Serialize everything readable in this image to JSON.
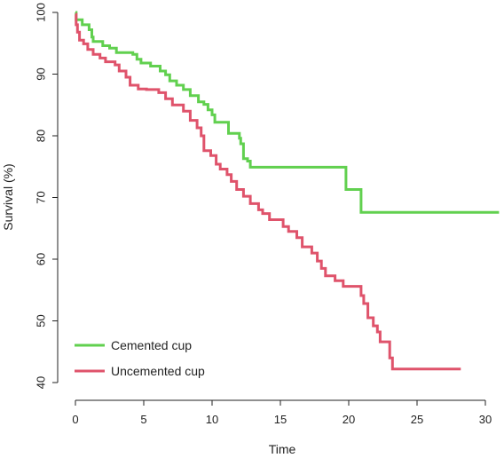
{
  "chart_data": {
    "type": "line",
    "title": "",
    "xlabel": "Time",
    "ylabel": "Survival (%)",
    "xlim": [
      0,
      31
    ],
    "ylim": [
      40,
      100
    ],
    "x_ticks": [
      0,
      5,
      10,
      15,
      20,
      25,
      30
    ],
    "y_ticks": [
      40,
      50,
      60,
      70,
      80,
      90,
      100
    ],
    "grid": false,
    "legend_position": "bottom-left",
    "step": true,
    "series": [
      {
        "name": "Cemented cup",
        "color": "#61d04f",
        "points": [
          [
            0,
            100
          ],
          [
            0.05,
            98.8
          ],
          [
            0.5,
            98.0
          ],
          [
            1.0,
            97.2
          ],
          [
            1.2,
            96.0
          ],
          [
            1.3,
            95.3
          ],
          [
            2.0,
            94.6
          ],
          [
            2.5,
            94.2
          ],
          [
            3.0,
            93.5
          ],
          [
            4.2,
            93.2
          ],
          [
            4.5,
            92.4
          ],
          [
            4.8,
            91.8
          ],
          [
            5.5,
            91.3
          ],
          [
            6.2,
            90.5
          ],
          [
            6.6,
            89.9
          ],
          [
            6.9,
            88.9
          ],
          [
            7.4,
            88.2
          ],
          [
            7.9,
            87.5
          ],
          [
            8.4,
            86.5
          ],
          [
            9.0,
            85.5
          ],
          [
            9.4,
            85.1
          ],
          [
            9.7,
            84.2
          ],
          [
            10.0,
            83.4
          ],
          [
            10.2,
            82.2
          ],
          [
            11.2,
            80.4
          ],
          [
            12.0,
            79.6
          ],
          [
            12.1,
            78.7
          ],
          [
            12.3,
            76.3
          ],
          [
            12.6,
            75.9
          ],
          [
            12.8,
            74.9
          ],
          [
            19.8,
            71.3
          ],
          [
            20.9,
            67.6
          ],
          [
            31.0,
            67.6
          ]
        ]
      },
      {
        "name": "Uncemented cup",
        "color": "#df536b",
        "points": [
          [
            0,
            99.7
          ],
          [
            0.05,
            98.0
          ],
          [
            0.15,
            96.8
          ],
          [
            0.3,
            95.5
          ],
          [
            0.6,
            94.9
          ],
          [
            0.9,
            94.0
          ],
          [
            1.3,
            93.2
          ],
          [
            1.8,
            92.6
          ],
          [
            2.2,
            92.0
          ],
          [
            2.9,
            91.5
          ],
          [
            3.2,
            90.5
          ],
          [
            3.7,
            89.5
          ],
          [
            4.0,
            88.2
          ],
          [
            4.6,
            87.6
          ],
          [
            5.2,
            87.5
          ],
          [
            6.1,
            87.0
          ],
          [
            6.6,
            86.0
          ],
          [
            7.1,
            85.0
          ],
          [
            7.9,
            84.0
          ],
          [
            8.4,
            82.5
          ],
          [
            8.9,
            81.3
          ],
          [
            9.2,
            80.0
          ],
          [
            9.4,
            77.6
          ],
          [
            9.9,
            76.8
          ],
          [
            10.3,
            75.4
          ],
          [
            10.6,
            74.6
          ],
          [
            11.1,
            73.7
          ],
          [
            11.4,
            72.6
          ],
          [
            11.8,
            71.3
          ],
          [
            12.3,
            70.2
          ],
          [
            12.8,
            69.0
          ],
          [
            13.4,
            68.0
          ],
          [
            13.7,
            67.4
          ],
          [
            14.2,
            66.4
          ],
          [
            15.2,
            65.3
          ],
          [
            15.6,
            64.5
          ],
          [
            16.2,
            63.5
          ],
          [
            16.6,
            62.0
          ],
          [
            17.3,
            61.0
          ],
          [
            17.7,
            59.7
          ],
          [
            18.0,
            58.5
          ],
          [
            18.3,
            57.3
          ],
          [
            19.0,
            56.5
          ],
          [
            19.6,
            55.6
          ],
          [
            20.9,
            54.1
          ],
          [
            21.1,
            52.8
          ],
          [
            21.4,
            50.5
          ],
          [
            21.8,
            49.2
          ],
          [
            22.1,
            48.2
          ],
          [
            22.3,
            46.6
          ],
          [
            23.0,
            44.0
          ],
          [
            23.2,
            42.2
          ],
          [
            28.2,
            42.2
          ]
        ]
      }
    ]
  }
}
